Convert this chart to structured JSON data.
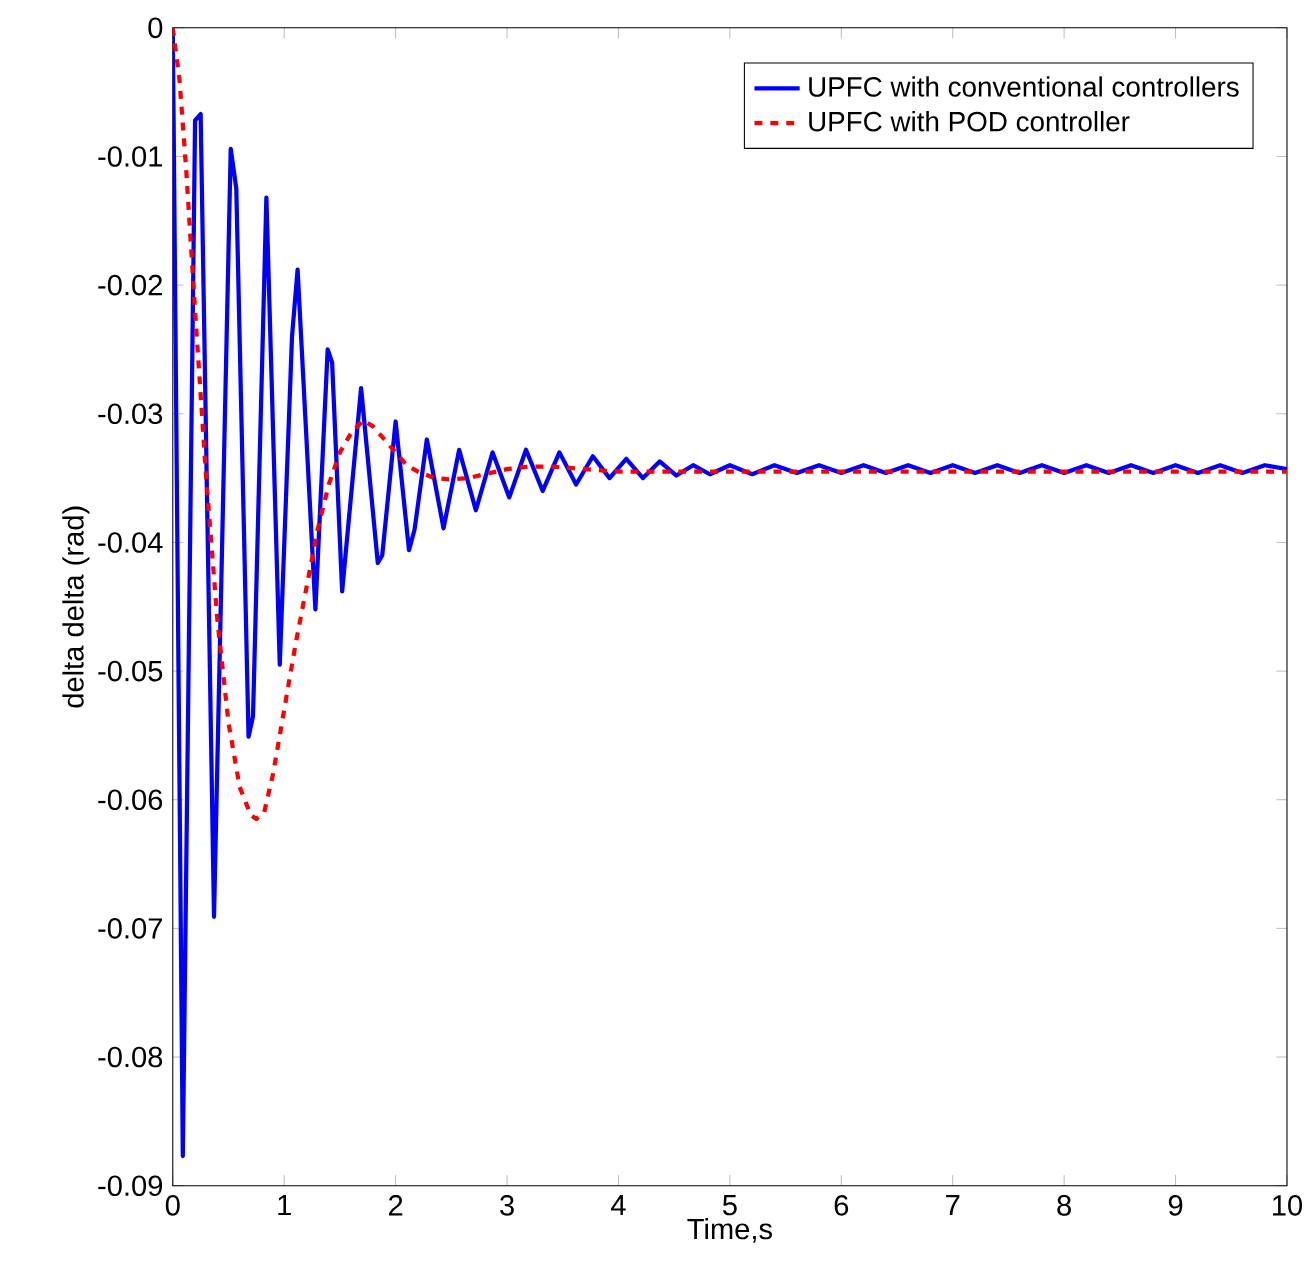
{
  "chart_data": {
    "type": "line",
    "xlabel": "Time,s",
    "ylabel": "delta delta (rad)",
    "xlim": [
      0,
      10
    ],
    "ylim": [
      -0.09,
      0
    ],
    "xticks": [
      0,
      1,
      2,
      3,
      4,
      5,
      6,
      7,
      8,
      9,
      10
    ],
    "yticks": [
      -0.09,
      -0.08,
      -0.07,
      -0.06,
      -0.05,
      -0.04,
      -0.03,
      -0.02,
      -0.01,
      0
    ],
    "grid": false,
    "legend": "top right",
    "marker": "none",
    "series": [
      {
        "name": "UPFC with conventional controllers",
        "color": "#0000ff",
        "line_style": "solid",
        "x": [
          0,
          0.09,
          0.2,
          0.25,
          0.37,
          0.52,
          0.57,
          0.68,
          0.72,
          0.84,
          0.96,
          1.07,
          1.12,
          1.28,
          1.39,
          1.43,
          1.52,
          1.69,
          1.84,
          1.88,
          2.0,
          2.12,
          2.17,
          2.28,
          2.43,
          2.57,
          2.72,
          2.87,
          3.02,
          3.17,
          3.32,
          3.47,
          3.62,
          3.77,
          3.92,
          4.07,
          4.22,
          4.37,
          4.52,
          4.67,
          4.82,
          5.0,
          5.2,
          5.4,
          5.6,
          5.8,
          6.0,
          6.2,
          6.4,
          6.6,
          6.8,
          7.0,
          7.2,
          7.4,
          7.6,
          7.8,
          8.0,
          8.2,
          8.4,
          8.6,
          8.8,
          9.0,
          9.2,
          9.4,
          9.6,
          9.8,
          10
        ],
        "values": [
          0,
          -0.0877,
          -0.0072,
          -0.0067,
          -0.0691,
          -0.0094,
          -0.0125,
          -0.0551,
          -0.0535,
          -0.0132,
          -0.0495,
          -0.024,
          -0.0188,
          -0.0452,
          -0.025,
          -0.026,
          -0.0438,
          -0.028,
          -0.0416,
          -0.041,
          -0.0306,
          -0.0406,
          -0.039,
          -0.032,
          -0.0389,
          -0.0328,
          -0.0375,
          -0.033,
          -0.0365,
          -0.0328,
          -0.036,
          -0.033,
          -0.0355,
          -0.0333,
          -0.035,
          -0.0335,
          -0.035,
          -0.0337,
          -0.0348,
          -0.034,
          -0.0347,
          -0.034,
          -0.0347,
          -0.034,
          -0.0346,
          -0.034,
          -0.0346,
          -0.034,
          -0.0346,
          -0.034,
          -0.0346,
          -0.034,
          -0.0346,
          -0.034,
          -0.0346,
          -0.034,
          -0.0346,
          -0.034,
          -0.0346,
          -0.034,
          -0.0346,
          -0.034,
          -0.0346,
          -0.034,
          -0.0346,
          -0.034,
          -0.0343
        ]
      },
      {
        "name": "UPFC with POD controller",
        "color": "#ff0000",
        "line_style": "dashed",
        "x": [
          0,
          0.06,
          0.12,
          0.2,
          0.3,
          0.4,
          0.5,
          0.6,
          0.7,
          0.75,
          0.82,
          0.9,
          1.0,
          1.1,
          1.2,
          1.3,
          1.4,
          1.5,
          1.6,
          1.71,
          1.8,
          1.9,
          2.0,
          2.1,
          2.2,
          2.35,
          2.48,
          2.65,
          2.8,
          3.0,
          3.2,
          3.4,
          3.7,
          4.0,
          5.0,
          6.0,
          7.0,
          8.0,
          9.0,
          10
        ],
        "values": [
          0,
          -0.004,
          -0.011,
          -0.022,
          -0.035,
          -0.046,
          -0.054,
          -0.059,
          -0.0612,
          -0.0615,
          -0.061,
          -0.058,
          -0.053,
          -0.048,
          -0.0435,
          -0.039,
          -0.0355,
          -0.033,
          -0.0315,
          -0.0305,
          -0.031,
          -0.032,
          -0.033,
          -0.034,
          -0.0345,
          -0.035,
          -0.0351,
          -0.035,
          -0.0347,
          -0.0343,
          -0.0341,
          -0.0341,
          -0.0343,
          -0.0345,
          -0.0345,
          -0.0345,
          -0.0345,
          -0.0345,
          -0.0345,
          -0.0345
        ]
      }
    ]
  }
}
